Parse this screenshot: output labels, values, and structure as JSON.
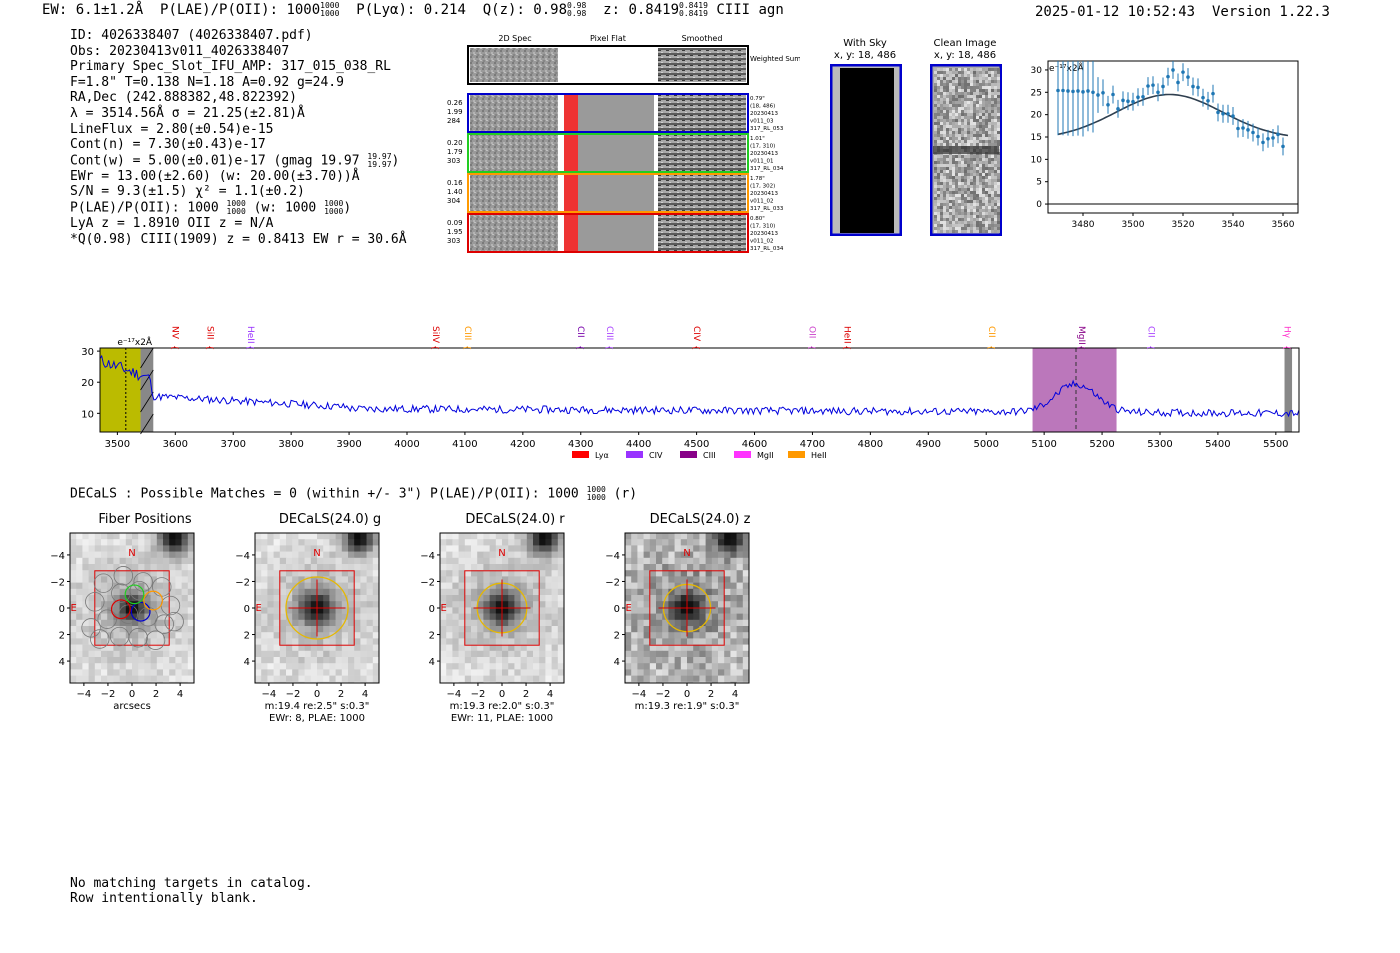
{
  "header": {
    "ew": "EW: 6.1±1.2Å",
    "plae_label": "P(LAE)/P(OII): 1000",
    "plae_hi": "1000",
    "plae_lo": "1000",
    "plya": "P(Lyα): 0.214",
    "qz_label": "Q(z): 0.98",
    "qz_hi": "0.98",
    "qz_lo": "0.98",
    "z_label": "z: 0.8419",
    "z_hi": "0.8419",
    "z_lo": "0.8419",
    "line_class": "CIII  agn",
    "timestamp": "2025-01-12 10:52:43",
    "version": "Version 1.22.3"
  },
  "info": {
    "id": "ID: 4026338407 (4026338407.pdf)",
    "obs": "Obs: 20230413v011_4026338407",
    "primary": "Primary Spec_Slot_IFU_AMP: 317_015_038_RL",
    "params": "F=1.8\"  T=0.138  N=1.18  A=0.92  g=24.9",
    "radec": "RA,Dec (242.888382,48.822392)",
    "lambda": "λ = 3514.56Å  σ = 21.25(±2.81)Å",
    "lineflux": "LineFlux = 2.80(±0.54)e-15",
    "contn": "Cont(n) = 7.30(±0.43)e-17",
    "contw": "Cont(w) = 5.00(±0.01)e-17 (gmag 19.97",
    "gmag_hi": "19.97",
    "gmag_lo": "19.97",
    "ewr": "EWr = 13.00(±2.60) (w: 20.00(±3.70))Å",
    "sn": "S/N = 9.3(±1.5)  χ² = 1.1(±0.2)",
    "plae_line": "P(LAE)/P(OII): 1000",
    "plae_line_hi": "1000",
    "plae_line_lo": "1000",
    "plae_w": "(w: 1000",
    "plae_w_hi": "1000",
    "plae_w_lo": "1000",
    "lya_z": "LyA z = 1.8910  OII z = N/A",
    "qline": "*Q(0.98) CIII(1909) z = 0.8413  EW r = 30.6Å"
  },
  "spec2d": {
    "col_2d": "2D Spec",
    "col_flat": "Pixel Flat",
    "col_smooth": "Smoothed",
    "weighted": "Weighted Sum",
    "rows": [
      {
        "w1": "0.26",
        "w2": "1.99",
        "w3": "284",
        "color": "#0000cc",
        "n1": "0.79\"",
        "n2": "(18, 486)",
        "n3": "20230413",
        "n4": "v011_03",
        "n5": "317_RL_053"
      },
      {
        "w1": "0.20",
        "w2": "1.79",
        "w3": "303",
        "color": "#22cc22",
        "n1": "1.01\"",
        "n2": "(17, 310)",
        "n3": "20230413",
        "n4": "v011_01",
        "n5": "317_RL_034"
      },
      {
        "w1": "0.16",
        "w2": "1.40",
        "w3": "304",
        "color": "#ff9900",
        "n1": "1.78\"",
        "n2": "(17, 302)",
        "n3": "20230413",
        "n4": "v011_02",
        "n5": "317_RL_033"
      },
      {
        "w1": "0.09",
        "w2": "1.95",
        "w3": "303",
        "color": "#dd0000",
        "n1": "0.80\"",
        "n2": "(17, 310)",
        "n3": "20230413",
        "n4": "v011_02",
        "n5": "317_RL_034"
      }
    ]
  },
  "stamps": {
    "sky_title": "With Sky",
    "sky_coords": "x, y: 18, 486",
    "clean_title": "Clean Image",
    "clean_coords": "x, y: 18, 486"
  },
  "fit_chart": {
    "unit_label": "e⁻¹⁷x2Å",
    "chart_data": {
      "type": "scatter",
      "x": [
        3470,
        3472,
        3474,
        3476,
        3478,
        3480,
        3482,
        3484,
        3486,
        3488,
        3490,
        3492,
        3494,
        3496,
        3498,
        3500,
        3502,
        3504,
        3506,
        3508,
        3510,
        3512,
        3514,
        3516,
        3518,
        3520,
        3522,
        3524,
        3526,
        3528,
        3530,
        3532,
        3534,
        3536,
        3538,
        3540,
        3542,
        3544,
        3546,
        3548,
        3550,
        3552,
        3554,
        3556,
        3558,
        3560
      ],
      "y": [
        25.4,
        25.4,
        25.3,
        25.2,
        25.3,
        25.1,
        25.3,
        25.0,
        24.4,
        24.9,
        22.2,
        24.5,
        21.3,
        23.2,
        23.0,
        22.9,
        23.9,
        24.0,
        26.4,
        26.6,
        25.0,
        26.3,
        28.5,
        30.0,
        27.2,
        29.5,
        28.4,
        26.3,
        26.1,
        23.8,
        23.1,
        24.7,
        20.5,
        20.2,
        20.2,
        19.7,
        16.9,
        17.0,
        16.6,
        16.0,
        15.1,
        13.8,
        14.6,
        14.8,
        15.6,
        12.9
      ],
      "err": [
        10,
        10,
        10,
        10,
        10,
        10,
        9,
        9,
        4,
        3,
        2,
        2,
        2,
        2,
        2,
        2,
        2,
        2,
        2,
        2,
        2,
        2,
        2,
        2,
        2,
        2,
        2,
        2,
        2,
        2,
        2,
        2,
        2,
        2,
        2,
        2,
        2,
        2,
        2,
        2,
        2,
        2,
        2,
        2,
        2,
        2
      ],
      "model_center": 3514.56,
      "model_sigma": 21.25,
      "model_amplitude": 10.0,
      "model_continuum": 14.5,
      "xlim": [
        3466,
        3566
      ],
      "ylim": [
        -2,
        32
      ],
      "xticks": [
        3480,
        3500,
        3520,
        3540,
        3560
      ],
      "yticks": [
        0,
        5,
        10,
        15,
        20,
        25,
        30
      ]
    }
  },
  "full_spec": {
    "unit_label": "e⁻¹⁷x2Å",
    "chart_data": {
      "type": "line",
      "xlim": [
        3470,
        5540
      ],
      "ylim": [
        4,
        31
      ],
      "xticks": [
        3500,
        3600,
        3700,
        3800,
        3900,
        4000,
        4100,
        4200,
        4300,
        4400,
        4500,
        4600,
        4700,
        4800,
        4900,
        5000,
        5100,
        5200,
        5300,
        5400,
        5500
      ],
      "yticks": [
        10,
        20,
        30
      ],
      "emission_lines": [
        {
          "name": "NV",
          "wave": 3590,
          "color": "#dd0000"
        },
        {
          "name": "SiII",
          "wave": 3650,
          "color": "#dd0000"
        },
        {
          "name": "HeII",
          "wave": 3720,
          "color": "#9933ff"
        },
        {
          "name": "SiIV",
          "wave": 4040,
          "color": "#dd0000"
        },
        {
          "name": "CIII",
          "wave": 4095,
          "color": "#ff9900"
        },
        {
          "name": "CII",
          "wave": 4290,
          "color": "#7700aa"
        },
        {
          "name": "CIII",
          "wave": 4340,
          "color": "#aa44ff"
        },
        {
          "name": "CIV",
          "wave": 4490,
          "color": "#dd0000"
        },
        {
          "name": "OII",
          "wave": 4690,
          "color": "#cc44cc"
        },
        {
          "name": "HeII",
          "wave": 4750,
          "color": "#dd0000"
        },
        {
          "name": "CII",
          "wave": 5000,
          "color": "#ff9900"
        },
        {
          "name": "MgII",
          "wave": 5155,
          "color": "#880088"
        },
        {
          "name": "CII",
          "wave": 5275,
          "color": "#aa44ff"
        },
        {
          "name": "Hγ",
          "wave": 5510,
          "color": "#ff33cc"
        }
      ],
      "legend": [
        {
          "name": "Lyα",
          "color": "#ff0000"
        },
        {
          "name": "CIV",
          "color": "#9933ff"
        },
        {
          "name": "CIII",
          "color": "#880088"
        },
        {
          "name": "MgII",
          "color": "#ff33ff"
        },
        {
          "name": "HeII",
          "color": "#ff9900"
        }
      ],
      "highlight_band": [
        5080,
        5225
      ],
      "marker_line": 5155,
      "lya_band": [
        3470,
        3540
      ],
      "lya_marker": 3514.56
    }
  },
  "decals": {
    "summary": "DECaLS : Possible Matches = 0 (within +/- 3\")  P(LAE)/P(OII): 1000",
    "summary_hi": "1000",
    "summary_lo": "1000",
    "summary_band": "(r)",
    "north": "N",
    "east": "E",
    "xlabel": "arcsecs",
    "ticks": [
      "−4",
      "−2",
      "0",
      "2",
      "4"
    ],
    "panels": [
      {
        "title": "Fiber Positions",
        "caption1": "",
        "caption2": ""
      },
      {
        "title": "DECaLS(24.0) g",
        "caption1": "m:19.4  re:2.5\"  s:0.3\"",
        "caption2": "EWr: 8, PLAE: 1000"
      },
      {
        "title": "DECaLS(24.0) r",
        "caption1": "m:19.3  re:2.0\"  s:0.3\"",
        "caption2": "EWr: 11, PLAE: 1000"
      },
      {
        "title": "DECaLS(24.0) z",
        "caption1": "m:19.3  re:1.9\"  s:0.3\"",
        "caption2": ""
      }
    ]
  },
  "footer": {
    "line1": "No matching targets in catalog.",
    "line2": "Row intentionally blank."
  }
}
